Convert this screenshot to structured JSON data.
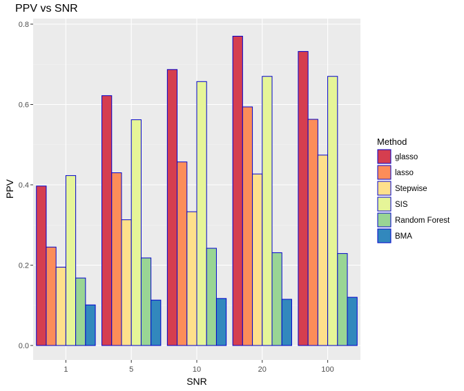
{
  "chart_data": {
    "type": "bar",
    "title": "PPV vs SNR",
    "xlabel": "SNR",
    "ylabel": "PPV",
    "categories": [
      "1",
      "5",
      "10",
      "20",
      "100"
    ],
    "ylim": [
      0,
      0.8
    ],
    "yticks": [
      "0.0",
      "0.2",
      "0.4",
      "0.6",
      "0.8"
    ],
    "grid": true,
    "legend_title": "Method",
    "legend_position": "right",
    "bar_outline_color": "#0000cc",
    "panel_background": "#ebebeb",
    "series": [
      {
        "name": "glasso",
        "color": "#d53e4f",
        "values": [
          0.397,
          0.622,
          0.687,
          0.77,
          0.732
        ]
      },
      {
        "name": "lasso",
        "color": "#fc8d59",
        "values": [
          0.245,
          0.43,
          0.457,
          0.594,
          0.563
        ]
      },
      {
        "name": "Stepwise",
        "color": "#fee08b",
        "values": [
          0.195,
          0.313,
          0.333,
          0.427,
          0.474
        ]
      },
      {
        "name": "SIS",
        "color": "#e6f598",
        "values": [
          0.423,
          0.562,
          0.657,
          0.67,
          0.67
        ]
      },
      {
        "name": "Random Forest",
        "color": "#99d594",
        "values": [
          0.168,
          0.218,
          0.242,
          0.231,
          0.229
        ]
      },
      {
        "name": "BMA",
        "color": "#3288bd",
        "values": [
          0.101,
          0.113,
          0.117,
          0.115,
          0.12
        ]
      }
    ]
  }
}
